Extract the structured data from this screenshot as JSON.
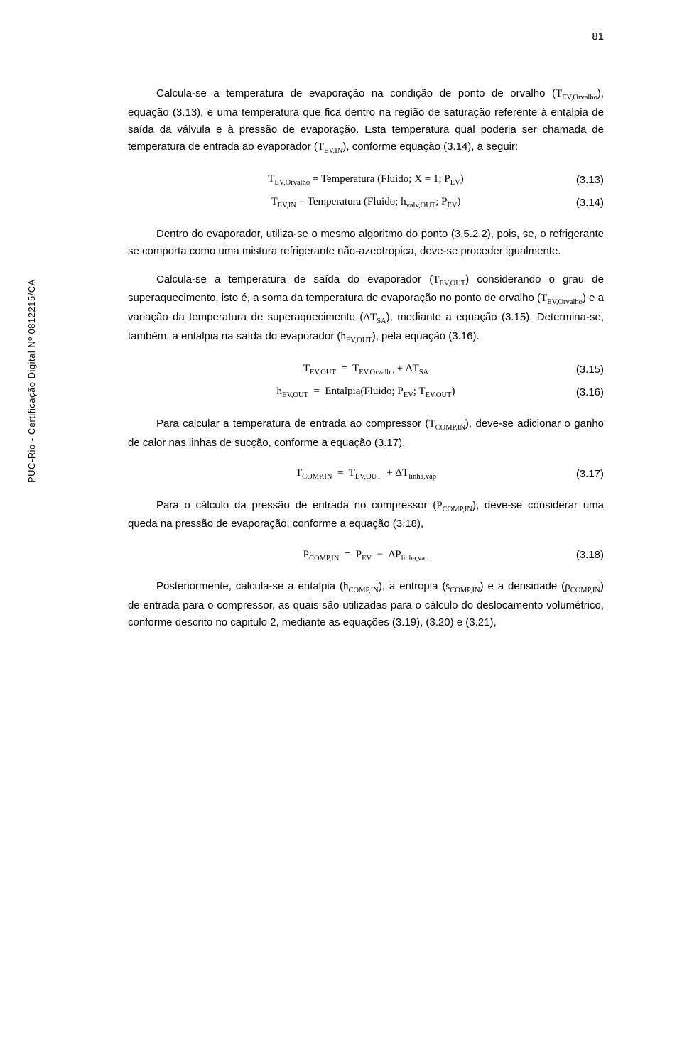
{
  "page_number": "81",
  "sidebar_label": "PUC-Rio - Certificação Digital Nº 0812215/CA",
  "p1": "Calcula-se a temperatura de evaporação na condição de ponto de orvalho (T_EV,Orvalho), equação (3.13), e uma temperatura que fica dentro na região de saturação referente à entalpia de saída da válvula e à pressão de evaporação. Esta temperatura qual poderia ser chamada de temperatura de entrada ao evaporador (T_EV,IN), conforme equação (3.14), a seguir:",
  "eq1": "T_EV,Orvalho = Temperatura (Fluido; X = 1; P_EV)",
  "eq1_num": "(3.13)",
  "eq2": "T_EV,IN = Temperatura (Fluido; h_valv,OUT; P_EV)",
  "eq2_num": "(3.14)",
  "p2": "Dentro do evaporador, utiliza-se o mesmo algoritmo do ponto (3.5.2.2), pois, se, o refrigerante se comporta como uma mistura refrigerante não-azeotropica, deve-se proceder igualmente.",
  "p3": "Calcula-se a temperatura de saída do evaporador (T_EV,OUT) considerando o grau de superaquecimento, isto é, a soma da temperatura de evaporação no ponto de orvalho (T_EV,Orvalho) e a variação da temperatura de superaquecimento (ΔT_SA), mediante a equação (3.15). Determina-se, também, a entalpia na saída do evaporador (h_EV,OUT), pela equação (3.16).",
  "eq3": "T_EV,OUT  =  T_EV,Orvalho + ΔT_SA",
  "eq3_num": "(3.15)",
  "eq4": "h_EV,OUT  =  Entalpia(Fluido; P_EV; T_EV,OUT)",
  "eq4_num": "(3.16)",
  "p4": "Para calcular a temperatura de entrada ao compressor (T_COMP,IN), deve-se adicionar o ganho de calor nas linhas de sucção, conforme a equação (3.17).",
  "eq5": "T_COMP,IN  =  T_EV,OUT  + ΔT_linha,vap",
  "eq5_num": "(3.17)",
  "p5": "Para o cálculo da pressão de entrada no compressor (P_COMP,IN), deve-se considerar uma queda na pressão de evaporação, conforme a equação (3.18),",
  "eq6": "P_COMP,IN  =  P_EV  −  ΔP_linha,vap",
  "eq6_num": "(3.18)",
  "p6": "Posteriormente, calcula-se a entalpia (h_COMP,IN), a entropia (s_COMP,IN) e a densidade (ρ_COMP,IN) de entrada para o compressor, as quais são utilizadas para o cálculo do deslocamento volumétrico, conforme descrito no capitulo 2, mediante as equações (3.19), (3.20) e (3.21),",
  "colors": {
    "text": "#000000",
    "background": "#ffffff"
  },
  "typography": {
    "body_font": "Arial",
    "math_font": "Cambria Math",
    "body_size_pt": 11,
    "line_height": 1.6
  }
}
